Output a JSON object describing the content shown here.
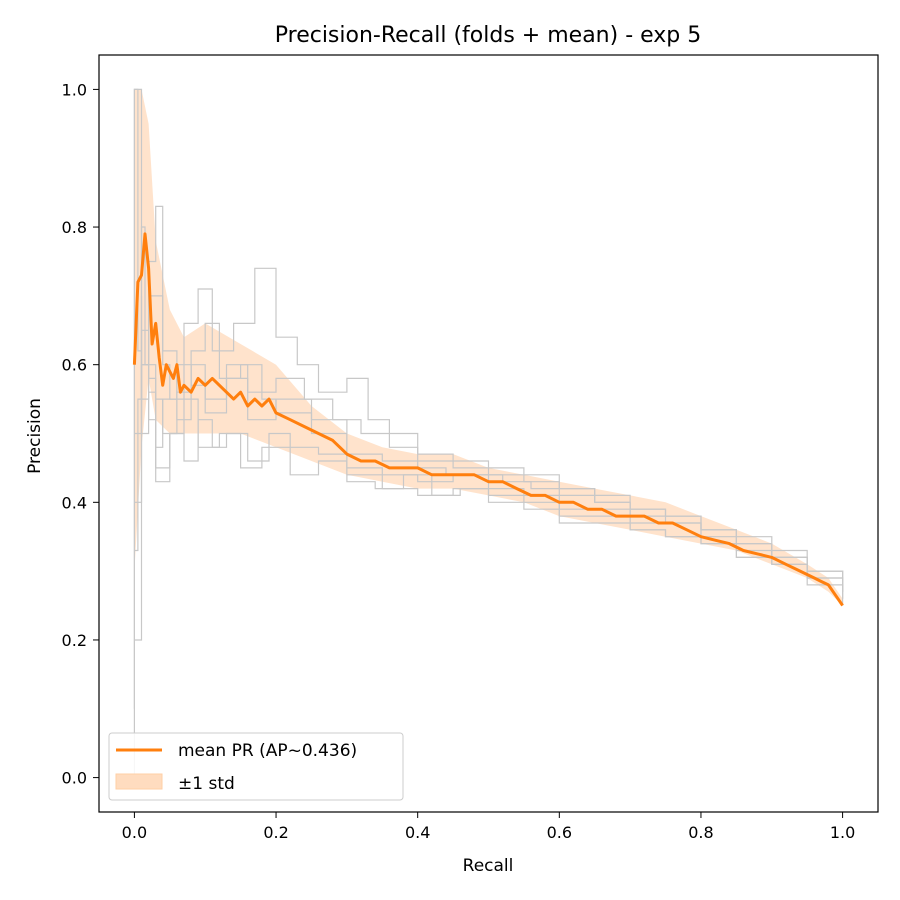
{
  "chart_data": {
    "type": "line",
    "title": "Precision-Recall (folds + mean) - exp 5",
    "xlabel": "Recall",
    "ylabel": "Precision",
    "xlim": [
      -0.05,
      1.05
    ],
    "ylim": [
      -0.05,
      1.05
    ],
    "xticks": [
      "0.0",
      "0.2",
      "0.4",
      "0.6",
      "0.8",
      "1.0"
    ],
    "yticks": [
      "0.0",
      "0.2",
      "0.4",
      "0.6",
      "0.8",
      "1.0"
    ],
    "grid": false,
    "legend_position": "lower-left",
    "colors": {
      "mean": "#ff7f0e",
      "band": "#ffdcbf",
      "folds": "#c8c8c8"
    },
    "legend": [
      {
        "label": "mean PR (AP~0.436)",
        "kind": "line"
      },
      {
        "label": "±1 std",
        "kind": "band"
      }
    ],
    "series": [
      {
        "name": "mean PR (AP~0.436)",
        "x": [
          0.0,
          0.005,
          0.01,
          0.015,
          0.02,
          0.025,
          0.03,
          0.035,
          0.04,
          0.045,
          0.05,
          0.055,
          0.06,
          0.065,
          0.07,
          0.08,
          0.09,
          0.1,
          0.11,
          0.12,
          0.13,
          0.14,
          0.15,
          0.16,
          0.17,
          0.18,
          0.19,
          0.2,
          0.22,
          0.24,
          0.26,
          0.28,
          0.3,
          0.32,
          0.34,
          0.36,
          0.38,
          0.4,
          0.42,
          0.44,
          0.46,
          0.48,
          0.5,
          0.52,
          0.54,
          0.56,
          0.58,
          0.6,
          0.62,
          0.64,
          0.66,
          0.68,
          0.7,
          0.72,
          0.74,
          0.76,
          0.78,
          0.8,
          0.82,
          0.84,
          0.86,
          0.88,
          0.9,
          0.92,
          0.94,
          0.96,
          0.97,
          0.98,
          0.99,
          1.0
        ],
        "y": [
          0.6,
          0.72,
          0.73,
          0.79,
          0.74,
          0.63,
          0.66,
          0.61,
          0.57,
          0.6,
          0.59,
          0.58,
          0.6,
          0.56,
          0.57,
          0.56,
          0.58,
          0.57,
          0.58,
          0.57,
          0.56,
          0.55,
          0.56,
          0.54,
          0.55,
          0.54,
          0.55,
          0.53,
          0.52,
          0.51,
          0.5,
          0.49,
          0.47,
          0.46,
          0.46,
          0.45,
          0.45,
          0.45,
          0.44,
          0.44,
          0.44,
          0.44,
          0.43,
          0.43,
          0.42,
          0.41,
          0.41,
          0.4,
          0.4,
          0.39,
          0.39,
          0.38,
          0.38,
          0.38,
          0.37,
          0.37,
          0.36,
          0.35,
          0.345,
          0.34,
          0.33,
          0.325,
          0.32,
          0.31,
          0.3,
          0.29,
          0.285,
          0.28,
          0.265,
          0.25
        ]
      },
      {
        "name": "±1 std",
        "x": [
          0.0,
          0.01,
          0.02,
          0.03,
          0.05,
          0.07,
          0.1,
          0.15,
          0.2,
          0.25,
          0.3,
          0.35,
          0.4,
          0.45,
          0.5,
          0.55,
          0.6,
          0.65,
          0.7,
          0.75,
          0.8,
          0.85,
          0.9,
          0.95,
          0.98,
          1.0
        ],
        "upper": [
          1.0,
          1.0,
          0.95,
          0.78,
          0.68,
          0.64,
          0.66,
          0.63,
          0.6,
          0.54,
          0.5,
          0.48,
          0.47,
          0.47,
          0.45,
          0.44,
          0.43,
          0.42,
          0.41,
          0.4,
          0.38,
          0.36,
          0.34,
          0.31,
          0.29,
          0.26
        ],
        "lower": [
          0.3,
          0.48,
          0.58,
          0.52,
          0.5,
          0.5,
          0.5,
          0.5,
          0.48,
          0.46,
          0.44,
          0.43,
          0.42,
          0.42,
          0.41,
          0.4,
          0.38,
          0.37,
          0.36,
          0.35,
          0.34,
          0.33,
          0.31,
          0.29,
          0.27,
          0.25
        ]
      },
      {
        "name": "",
        "x": [
          0.0,
          0.0,
          0.005,
          0.005,
          0.01,
          0.01,
          0.02,
          0.03,
          0.04,
          0.06,
          0.08,
          0.1,
          0.12,
          0.15,
          0.18,
          0.2,
          0.25,
          0.3,
          0.35,
          0.4,
          0.45,
          0.5,
          0.55,
          0.6,
          0.65,
          0.7,
          0.75,
          0.8,
          0.85,
          0.9,
          0.95,
          1.0
        ],
        "y": [
          0.0,
          1.0,
          1.0,
          0.62,
          0.7,
          0.55,
          0.6,
          0.55,
          0.5,
          0.56,
          0.62,
          0.66,
          0.58,
          0.6,
          0.55,
          0.53,
          0.52,
          0.47,
          0.46,
          0.46,
          0.45,
          0.44,
          0.43,
          0.42,
          0.4,
          0.39,
          0.38,
          0.36,
          0.34,
          0.32,
          0.3,
          0.27
        ]
      },
      {
        "name": "",
        "x": [
          0.0,
          0.0,
          0.01,
          0.01,
          0.02,
          0.03,
          0.04,
          0.06,
          0.08,
          0.1,
          0.13,
          0.16,
          0.2,
          0.25,
          0.3,
          0.35,
          0.4,
          0.45,
          0.5,
          0.55,
          0.6,
          0.65,
          0.7,
          0.75,
          0.8,
          0.85,
          0.9,
          0.95,
          1.0
        ],
        "y": [
          0.1,
          1.0,
          1.0,
          0.5,
          0.56,
          0.48,
          0.55,
          0.6,
          0.57,
          0.53,
          0.58,
          0.52,
          0.55,
          0.5,
          0.45,
          0.44,
          0.43,
          0.44,
          0.42,
          0.41,
          0.39,
          0.39,
          0.37,
          0.37,
          0.35,
          0.33,
          0.32,
          0.29,
          0.26
        ]
      },
      {
        "name": "",
        "x": [
          0.0,
          0.005,
          0.01,
          0.015,
          0.015,
          0.02,
          0.03,
          0.05,
          0.07,
          0.09,
          0.11,
          0.13,
          0.16,
          0.19,
          0.22,
          0.26,
          0.3,
          0.35,
          0.4,
          0.45,
          0.5,
          0.55,
          0.6,
          0.65,
          0.7,
          0.75,
          0.8,
          0.85,
          0.9,
          0.95,
          1.0
        ],
        "y": [
          0.33,
          0.55,
          0.8,
          0.8,
          0.6,
          0.52,
          0.45,
          0.5,
          0.46,
          0.52,
          0.48,
          0.5,
          0.46,
          0.5,
          0.48,
          0.47,
          0.44,
          0.42,
          0.41,
          0.42,
          0.41,
          0.4,
          0.38,
          0.38,
          0.36,
          0.35,
          0.34,
          0.32,
          0.31,
          0.29,
          0.27
        ]
      },
      {
        "name": "",
        "x": [
          0.0,
          0.01,
          0.02,
          0.03,
          0.04,
          0.05,
          0.07,
          0.09,
          0.11,
          0.14,
          0.17,
          0.2,
          0.23,
          0.26,
          0.3,
          0.33,
          0.36,
          0.4,
          0.45,
          0.5,
          0.55,
          0.6,
          0.65,
          0.7,
          0.75,
          0.8,
          0.85,
          0.9,
          0.95,
          1.0
        ],
        "y": [
          0.4,
          0.6,
          0.75,
          0.83,
          0.6,
          0.55,
          0.66,
          0.71,
          0.62,
          0.66,
          0.74,
          0.64,
          0.6,
          0.56,
          0.58,
          0.52,
          0.5,
          0.47,
          0.46,
          0.45,
          0.44,
          0.42,
          0.41,
          0.39,
          0.38,
          0.36,
          0.35,
          0.33,
          0.3,
          0.27
        ]
      },
      {
        "name": "",
        "x": [
          0.0,
          0.01,
          0.02,
          0.03,
          0.05,
          0.07,
          0.09,
          0.12,
          0.15,
          0.18,
          0.22,
          0.26,
          0.3,
          0.34,
          0.38,
          0.42,
          0.46,
          0.5,
          0.55,
          0.6,
          0.65,
          0.7,
          0.75,
          0.8,
          0.85,
          0.9,
          0.95,
          1.0
        ],
        "y": [
          0.5,
          0.65,
          0.58,
          0.43,
          0.5,
          0.55,
          0.48,
          0.5,
          0.45,
          0.48,
          0.44,
          0.46,
          0.43,
          0.42,
          0.44,
          0.41,
          0.42,
          0.4,
          0.39,
          0.37,
          0.37,
          0.36,
          0.35,
          0.34,
          0.32,
          0.31,
          0.28,
          0.25
        ]
      },
      {
        "name": "",
        "x": [
          0.0,
          0.01,
          0.02,
          0.04,
          0.06,
          0.08,
          0.1,
          0.13,
          0.16,
          0.2,
          0.24,
          0.28,
          0.32,
          0.36,
          0.4,
          0.44,
          0.48,
          0.52,
          0.56,
          0.6,
          0.65,
          0.7,
          0.75,
          0.8,
          0.85,
          0.9,
          0.95,
          1.0
        ],
        "y": [
          0.2,
          0.6,
          0.7,
          0.62,
          0.52,
          0.6,
          0.55,
          0.6,
          0.56,
          0.58,
          0.55,
          0.52,
          0.5,
          0.48,
          0.45,
          0.44,
          0.44,
          0.43,
          0.42,
          0.41,
          0.4,
          0.38,
          0.37,
          0.36,
          0.34,
          0.32,
          0.3,
          0.26
        ]
      }
    ]
  }
}
